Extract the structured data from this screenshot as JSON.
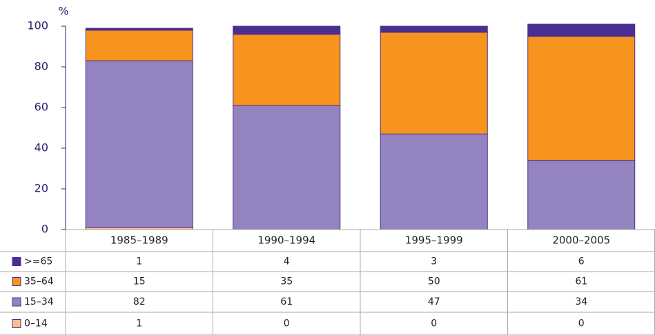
{
  "chart_data": {
    "type": "bar",
    "stacked": true,
    "y_label": "%",
    "categories": [
      "1985–1989",
      "1990–1994",
      "1995–1999",
      "2000–2005"
    ],
    "series": [
      {
        "name": ">=65",
        "color": "#4b2e91",
        "values": [
          1,
          4,
          3,
          6
        ]
      },
      {
        "name": "35–64",
        "color": "#f7941d",
        "values": [
          15,
          35,
          50,
          61
        ]
      },
      {
        "name": "15–34",
        "color": "#9384bf",
        "values": [
          82,
          61,
          47,
          34
        ]
      },
      {
        "name": "0–14",
        "color": "#f9c08f",
        "values": [
          1,
          0,
          0,
          0
        ]
      }
    ],
    "ylim": [
      0,
      100
    ],
    "yticks": [
      0,
      20,
      40,
      60,
      80,
      100
    ],
    "data_table": true
  }
}
